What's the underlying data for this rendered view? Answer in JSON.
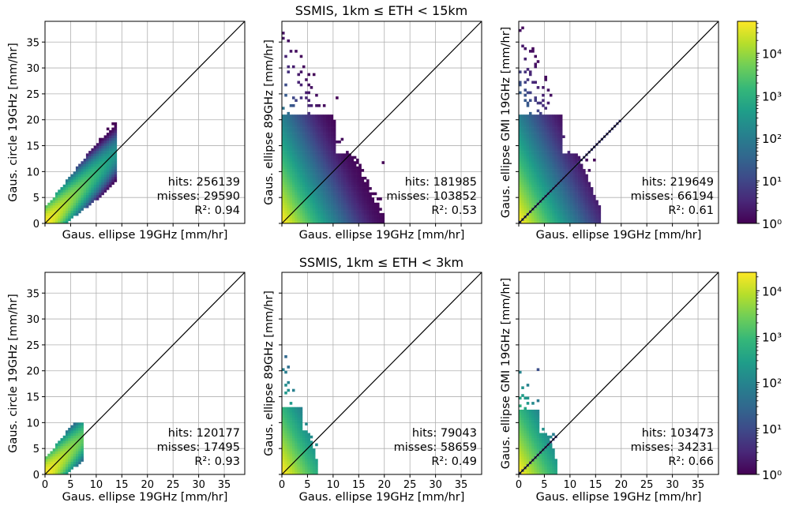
{
  "figure": {
    "rows": [
      {
        "title": "SSMIS, 1km ≤ ETH < 15km",
        "colorbar": {
          "ticks": [
            "10⁰",
            "10¹",
            "10²",
            "10³",
            "10⁴"
          ],
          "log_max": 4.75
        },
        "panels": [
          {
            "ylabel": "Gaus. circle 19GHz [mm/hr]",
            "xlabel": "Gaus. ellipse 19GHz [mm/hr]",
            "show_xticks": false,
            "show_yticks": true,
            "stats": [
              "hits: 256139",
              "misses: 29590",
              "R²: 0.94"
            ]
          },
          {
            "ylabel": "Gaus. ellipse 89GHz [mm/hr]",
            "xlabel": "Gaus. ellipse 19GHz [mm/hr]",
            "show_xticks": false,
            "show_yticks": false,
            "stats": [
              "hits: 181985",
              "misses: 103852",
              "R²: 0.53"
            ]
          },
          {
            "ylabel": "Gaus. ellipse GMI 19GHz [mm/hr]",
            "xlabel": "Gaus. ellipse 19GHz [mm/hr]",
            "show_xticks": false,
            "show_yticks": false,
            "stats": [
              "hits: 219649",
              "misses: 66194",
              "R²: 0.61"
            ]
          }
        ]
      },
      {
        "title": "SSMIS, 1km ≤ ETH < 3km",
        "colorbar": {
          "ticks": [
            "10⁰",
            "10¹",
            "10²",
            "10³",
            "10⁴"
          ],
          "log_max": 4.4
        },
        "panels": [
          {
            "ylabel": "Gaus. circle 19GHz [mm/hr]",
            "xlabel": "Gaus. ellipse 19GHz [mm/hr]",
            "show_xticks": true,
            "show_yticks": true,
            "stats": [
              "hits: 120177",
              "misses: 17495",
              "R²: 0.93"
            ]
          },
          {
            "ylabel": "Gaus. ellipse 89GHz [mm/hr]",
            "xlabel": "Gaus. ellipse 19GHz [mm/hr]",
            "show_xticks": true,
            "show_yticks": false,
            "stats": [
              "hits: 79043",
              "misses: 58659",
              "R²: 0.49"
            ]
          },
          {
            "ylabel": "Gaus. ellipse GMI 19GHz [mm/hr]",
            "xlabel": "Gaus. ellipse 19GHz [mm/hr]",
            "show_xticks": true,
            "show_yticks": false,
            "stats": [
              "hits: 103473",
              "misses: 34231",
              "R²: 0.66"
            ]
          }
        ]
      }
    ]
  },
  "chart_data": [
    {
      "type": "heatmap",
      "subtype": "2d-histogram-log-color",
      "colormap": "viridis",
      "xlabel": "Gaus. ellipse 19GHz [mm/hr]",
      "ylabel": "Gaus. circle 19GHz [mm/hr]",
      "xlim": [
        0,
        39
      ],
      "ylim": [
        0,
        39
      ],
      "ticks": [
        0,
        5,
        10,
        15,
        20,
        25,
        30,
        35
      ],
      "grid": true,
      "reference_line": "y = x",
      "x_spread_max": 14,
      "y_spread_max": 20.5,
      "hits": 256139,
      "misses": 29590,
      "r2": 0.94
    },
    {
      "type": "heatmap",
      "subtype": "2d-histogram-log-color",
      "colormap": "viridis",
      "xlabel": "Gaus. ellipse 19GHz [mm/hr]",
      "ylabel": "Gaus. ellipse 89GHz [mm/hr]",
      "xlim": [
        0,
        39
      ],
      "ylim": [
        0,
        39
      ],
      "ticks": [
        0,
        5,
        10,
        15,
        20,
        25,
        30,
        35
      ],
      "grid": true,
      "reference_line": "y = x",
      "x_spread_max": 20,
      "y_spread_max": 38,
      "hits": 181985,
      "misses": 103852,
      "r2": 0.53
    },
    {
      "type": "heatmap",
      "subtype": "2d-histogram-log-color",
      "colormap": "viridis",
      "xlabel": "Gaus. ellipse 19GHz [mm/hr]",
      "ylabel": "Gaus. ellipse GMI 19GHz [mm/hr]",
      "xlim": [
        0,
        39
      ],
      "ylim": [
        0,
        39
      ],
      "ticks": [
        0,
        5,
        10,
        15,
        20,
        25,
        30,
        35
      ],
      "grid": true,
      "reference_line": "y = x",
      "x_spread_max": 16,
      "y_spread_max": 38,
      "hits": 219649,
      "misses": 66194,
      "r2": 0.61
    },
    {
      "type": "heatmap",
      "subtype": "2d-histogram-log-color",
      "colormap": "viridis",
      "xlabel": "Gaus. ellipse 19GHz [mm/hr]",
      "ylabel": "Gaus. circle 19GHz [mm/hr]",
      "xlim": [
        0,
        39
      ],
      "ylim": [
        0,
        39
      ],
      "ticks": [
        0,
        5,
        10,
        15,
        20,
        25,
        30,
        35
      ],
      "grid": true,
      "reference_line": "y = x",
      "x_spread_max": 7.5,
      "y_spread_max": 10,
      "hits": 120177,
      "misses": 17495,
      "r2": 0.93
    },
    {
      "type": "heatmap",
      "subtype": "2d-histogram-log-color",
      "colormap": "viridis",
      "xlabel": "Gaus. ellipse 19GHz [mm/hr]",
      "ylabel": "Gaus. ellipse 89GHz [mm/hr]",
      "xlim": [
        0,
        39
      ],
      "ylim": [
        0,
        39
      ],
      "ticks": [
        0,
        5,
        10,
        15,
        20,
        25,
        30,
        35
      ],
      "grid": true,
      "reference_line": "y = x",
      "x_spread_max": 7,
      "y_spread_max": 23.5,
      "hits": 79043,
      "misses": 58659,
      "r2": 0.49
    },
    {
      "type": "heatmap",
      "subtype": "2d-histogram-log-color",
      "colormap": "viridis",
      "xlabel": "Gaus. ellipse 19GHz [mm/hr]",
      "ylabel": "Gaus. ellipse GMI 19GHz [mm/hr]",
      "xlim": [
        0,
        39
      ],
      "ylim": [
        0,
        39
      ],
      "ticks": [
        0,
        5,
        10,
        15,
        20,
        25,
        30,
        35
      ],
      "grid": true,
      "reference_line": "y = x",
      "x_spread_max": 7.5,
      "y_spread_max": 22.5,
      "hits": 103473,
      "misses": 34231,
      "r2": 0.66
    }
  ]
}
